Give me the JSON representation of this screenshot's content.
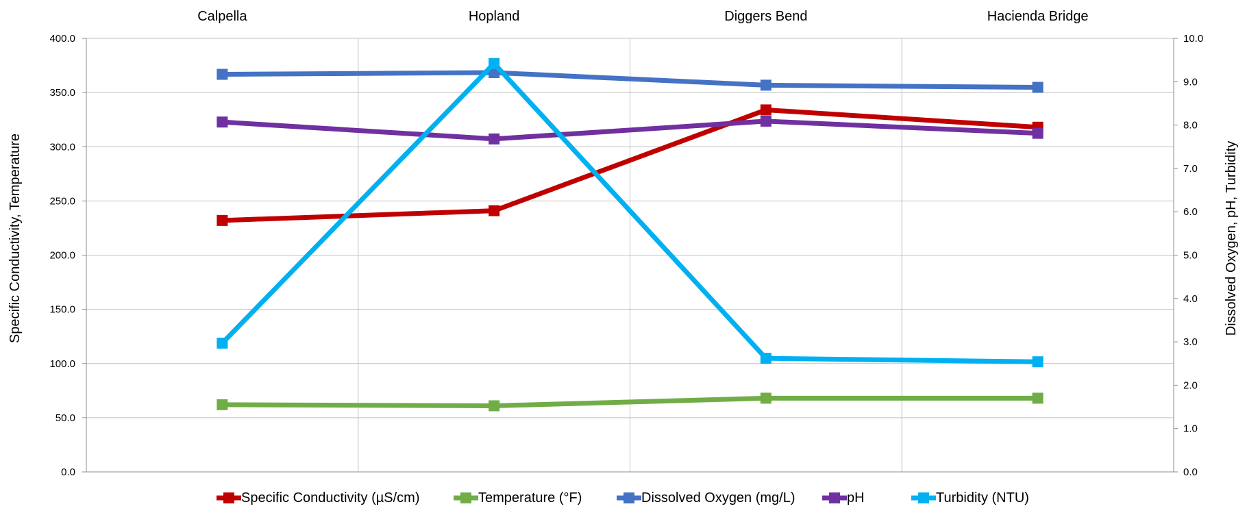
{
  "chart_data": {
    "type": "line",
    "categories": [
      "Calpella",
      "Hopland",
      "Diggers Bend",
      "Hacienda Bridge"
    ],
    "category_position": "top",
    "y_left": {
      "label": "Specific Conductivity, Temperature",
      "range": [
        0,
        400
      ],
      "ticks": [
        "0.0",
        "50.0",
        "100.0",
        "150.0",
        "200.0",
        "250.0",
        "300.0",
        "350.0",
        "400.0"
      ]
    },
    "y_right": {
      "label": "Dissolved Oxygen, pH, Turbidity",
      "range": [
        0,
        10
      ],
      "ticks": [
        "0.0",
        "1.0",
        "2.0",
        "3.0",
        "4.0",
        "5.0",
        "6.0",
        "7.0",
        "8.0",
        "9.0",
        "10.0"
      ]
    },
    "grid": true,
    "legend_position": "bottom",
    "series": [
      {
        "name": "Specific Conductivity (µS/cm)",
        "axis": "left",
        "color": "#c00000",
        "values": [
          232,
          241,
          334,
          318
        ]
      },
      {
        "name": "Temperature  (°F)",
        "axis": "left",
        "color": "#70ad47",
        "values": [
          62,
          61,
          68,
          68
        ]
      },
      {
        "name": "Dissolved Oxygen (mg/L)",
        "axis": "right",
        "color": "#4472c4",
        "values": [
          9.17,
          9.21,
          8.92,
          8.87
        ]
      },
      {
        "name": "pH",
        "axis": "right",
        "color": "#7030a0",
        "values": [
          8.07,
          7.68,
          8.09,
          7.81
        ]
      },
      {
        "name": "Turbidity (NTU)",
        "axis": "right",
        "color": "#00b0f0",
        "values": [
          2.97,
          9.42,
          2.62,
          2.54
        ]
      }
    ]
  }
}
